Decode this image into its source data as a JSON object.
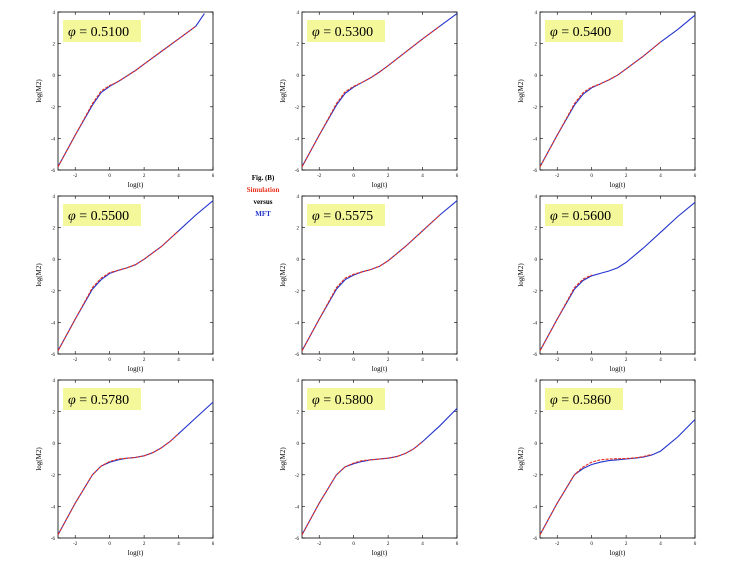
{
  "legend": {
    "figure_label": "Fig. (B)",
    "simulation_label": "Simulation",
    "versus_label": "versus",
    "mft_label": "MFT",
    "simulation_color": "#e8321e",
    "mft_color": "#2233cc",
    "label_background_color": "#f4f89a"
  },
  "chart_data": [
    {
      "type": "line",
      "phi_label": "= 0.5100",
      "xlabel": "log(t)",
      "ylabel": "log(M2)",
      "xlim": [
        -3,
        6
      ],
      "ylim": [
        -6,
        4
      ],
      "xticks": [
        "-2",
        "0",
        "2",
        "4",
        "6"
      ],
      "yticks": [
        "4",
        "2",
        "0",
        "-2",
        "-4",
        "-6"
      ],
      "series": [
        {
          "name": "Simulation",
          "x": [
            -3,
            -2,
            -1,
            -0.5,
            0,
            0.5,
            1,
            1.5,
            2,
            3,
            4,
            5
          ],
          "y": [
            -5.8,
            -3.8,
            -1.8,
            -1.0,
            -0.65,
            -0.4,
            -0.05,
            0.3,
            0.7,
            1.5,
            2.3,
            3.1
          ]
        },
        {
          "name": "MFT",
          "x": [
            -3,
            -2,
            -1,
            -0.5,
            0,
            0.5,
            1,
            1.5,
            2,
            3,
            4,
            5,
            5.5
          ],
          "y": [
            -5.8,
            -3.8,
            -1.9,
            -1.1,
            -0.7,
            -0.4,
            -0.05,
            0.3,
            0.7,
            1.5,
            2.3,
            3.1,
            3.9
          ]
        }
      ]
    },
    {
      "type": "line",
      "phi_label": "= 0.5300",
      "xlabel": "log(t)",
      "ylabel": "log(M2)",
      "xlim": [
        -3,
        6
      ],
      "ylim": [
        -6,
        4
      ],
      "xticks": [
        "-2",
        "0",
        "2",
        "4",
        "6"
      ],
      "yticks": [
        "4",
        "2",
        "0",
        "-2",
        "-4",
        "-6"
      ],
      "series": [
        {
          "name": "Simulation",
          "x": [
            -3,
            -2,
            -1,
            -0.5,
            0,
            0.5,
            1,
            1.5,
            2,
            3,
            4,
            5
          ],
          "y": [
            -5.8,
            -3.8,
            -1.8,
            -1.05,
            -0.7,
            -0.45,
            -0.15,
            0.2,
            0.6,
            1.45,
            2.3,
            3.1
          ]
        },
        {
          "name": "MFT",
          "x": [
            -3,
            -2,
            -1,
            -0.5,
            0,
            0.5,
            1,
            1.5,
            2,
            3,
            4,
            5,
            6
          ],
          "y": [
            -5.8,
            -3.8,
            -1.9,
            -1.15,
            -0.75,
            -0.45,
            -0.15,
            0.2,
            0.6,
            1.45,
            2.3,
            3.1,
            3.9
          ]
        }
      ]
    },
    {
      "type": "line",
      "phi_label": "= 0.5400",
      "xlabel": "log(t)",
      "ylabel": "log(M2)",
      "xlim": [
        -3,
        6
      ],
      "ylim": [
        -6,
        4
      ],
      "xticks": [
        "-2",
        "0",
        "2",
        "4",
        "6"
      ],
      "yticks": [
        "4",
        "2",
        "0",
        "-2",
        "-4",
        "-6"
      ],
      "series": [
        {
          "name": "Simulation",
          "x": [
            -3,
            -2,
            -1,
            -0.5,
            0,
            0.5,
            1,
            1.5,
            2,
            3,
            4
          ],
          "y": [
            -5.8,
            -3.8,
            -1.8,
            -1.1,
            -0.75,
            -0.55,
            -0.3,
            0.0,
            0.4,
            1.2,
            2.1
          ]
        },
        {
          "name": "MFT",
          "x": [
            -3,
            -2,
            -1,
            -0.5,
            0,
            0.5,
            1,
            1.5,
            2,
            3,
            4,
            5,
            6
          ],
          "y": [
            -5.8,
            -3.8,
            -1.9,
            -1.2,
            -0.8,
            -0.55,
            -0.3,
            0.0,
            0.4,
            1.2,
            2.1,
            2.9,
            3.8
          ]
        }
      ]
    },
    {
      "type": "line",
      "phi_label": "= 0.5500",
      "xlabel": "log(t)",
      "ylabel": "log(M2)",
      "xlim": [
        -3,
        6
      ],
      "ylim": [
        -6,
        4
      ],
      "xticks": [
        "-2",
        "0",
        "2",
        "4",
        "6"
      ],
      "yticks": [
        "4",
        "2",
        "0",
        "-2",
        "-4",
        "-6"
      ],
      "series": [
        {
          "name": "Simulation",
          "x": [
            -3,
            -2,
            -1,
            -0.5,
            0,
            0.5,
            1,
            1.5,
            2,
            3,
            4
          ],
          "y": [
            -5.8,
            -3.8,
            -1.8,
            -1.2,
            -0.85,
            -0.7,
            -0.55,
            -0.35,
            0.0,
            0.8,
            1.8
          ]
        },
        {
          "name": "MFT",
          "x": [
            -3,
            -2,
            -1,
            -0.5,
            0,
            0.5,
            1,
            1.5,
            2,
            3,
            4,
            5,
            6
          ],
          "y": [
            -5.8,
            -3.8,
            -1.9,
            -1.3,
            -0.9,
            -0.7,
            -0.55,
            -0.35,
            0.0,
            0.8,
            1.8,
            2.8,
            3.7
          ]
        }
      ]
    },
    {
      "type": "line",
      "phi_label": "= 0.5575",
      "xlabel": "log(t)",
      "ylabel": "log(M2)",
      "xlim": [
        -3,
        6
      ],
      "ylim": [
        -6,
        4
      ],
      "xticks": [
        "-2",
        "0",
        "2",
        "4",
        "6"
      ],
      "yticks": [
        "4",
        "2",
        "0",
        "-2",
        "-4",
        "-6"
      ],
      "series": [
        {
          "name": "Simulation",
          "x": [
            -3,
            -2,
            -1,
            -0.5,
            0,
            0.5,
            1,
            1.5,
            2,
            3,
            4,
            5
          ],
          "y": [
            -5.8,
            -3.8,
            -1.8,
            -1.2,
            -0.95,
            -0.8,
            -0.65,
            -0.45,
            -0.1,
            0.8,
            1.8,
            2.8
          ]
        },
        {
          "name": "MFT",
          "x": [
            -3,
            -2,
            -1,
            -0.5,
            0,
            0.5,
            1,
            1.5,
            2,
            3,
            4,
            5,
            6
          ],
          "y": [
            -5.8,
            -3.8,
            -1.9,
            -1.3,
            -1.0,
            -0.8,
            -0.65,
            -0.45,
            -0.1,
            0.8,
            1.8,
            2.8,
            3.7
          ]
        }
      ]
    },
    {
      "type": "line",
      "phi_label": "= 0.5600",
      "xlabel": "log(t)",
      "ylabel": "log(M2)",
      "xlim": [
        -3,
        6
      ],
      "ylim": [
        -6,
        4
      ],
      "xticks": [
        "-2",
        "0",
        "2",
        "4",
        "6"
      ],
      "yticks": [
        "4",
        "2",
        "0",
        "-2",
        "-4",
        "-6"
      ],
      "series": [
        {
          "name": "Simulation",
          "x": [
            -3,
            -2,
            -1,
            -0.5,
            0
          ],
          "y": [
            -5.8,
            -3.8,
            -1.8,
            -1.25,
            -1.0
          ]
        },
        {
          "name": "MFT",
          "x": [
            -3,
            -2,
            -1,
            -0.5,
            0,
            0.5,
            1,
            1.5,
            2,
            3,
            4,
            5,
            6
          ],
          "y": [
            -5.8,
            -3.8,
            -1.9,
            -1.35,
            -1.05,
            -0.9,
            -0.75,
            -0.55,
            -0.2,
            0.7,
            1.7,
            2.7,
            3.6
          ]
        }
      ]
    },
    {
      "type": "line",
      "phi_label": "= 0.5780",
      "xlabel": "log(t)",
      "ylabel": "log(M2)",
      "xlim": [
        -3,
        6
      ],
      "ylim": [
        -6,
        4
      ],
      "xticks": [
        "-2",
        "0",
        "2",
        "4",
        "6"
      ],
      "yticks": [
        "4",
        "2",
        "0",
        "-2",
        "-4",
        "-6"
      ],
      "series": [
        {
          "name": "Simulation",
          "x": [
            -3,
            -2,
            -1,
            -0.5,
            0,
            0.5,
            1,
            1.5,
            2,
            2.5,
            3,
            3.5,
            4
          ],
          "y": [
            -5.8,
            -3.8,
            -2.0,
            -1.45,
            -1.15,
            -1.0,
            -0.95,
            -0.9,
            -0.8,
            -0.6,
            -0.3,
            0.1,
            0.6
          ]
        },
        {
          "name": "MFT",
          "x": [
            -3,
            -2,
            -1,
            -0.5,
            0,
            0.5,
            1,
            1.5,
            2,
            2.5,
            3,
            3.5,
            4,
            5,
            6
          ],
          "y": [
            -5.8,
            -3.8,
            -2.0,
            -1.45,
            -1.2,
            -1.05,
            -0.95,
            -0.9,
            -0.8,
            -0.6,
            -0.3,
            0.1,
            0.6,
            1.6,
            2.6
          ]
        }
      ]
    },
    {
      "type": "line",
      "phi_label": "= 0.5800",
      "xlabel": "log(t)",
      "ylabel": "log(M2)",
      "xlim": [
        -3,
        6
      ],
      "ylim": [
        -6,
        4
      ],
      "xticks": [
        "-2",
        "0",
        "2",
        "4",
        "6"
      ],
      "yticks": [
        "4",
        "2",
        "0",
        "-2",
        "-4",
        "-6"
      ],
      "series": [
        {
          "name": "Simulation",
          "x": [
            -3,
            -2,
            -1,
            -0.5,
            0,
            0.5,
            1,
            1.5,
            2,
            2.5,
            3,
            3.5,
            4
          ],
          "y": [
            -5.8,
            -3.8,
            -2.0,
            -1.5,
            -1.25,
            -1.1,
            -1.05,
            -1.0,
            -0.95,
            -0.85,
            -0.65,
            -0.35,
            0.1
          ]
        },
        {
          "name": "MFT",
          "x": [
            -3,
            -2,
            -1,
            -0.5,
            0,
            0.5,
            1,
            1.5,
            2,
            2.5,
            3,
            3.5,
            4,
            5,
            6
          ],
          "y": [
            -5.8,
            -3.8,
            -2.0,
            -1.5,
            -1.3,
            -1.15,
            -1.05,
            -1.0,
            -0.95,
            -0.85,
            -0.65,
            -0.35,
            0.1,
            1.1,
            2.2
          ]
        }
      ]
    },
    {
      "type": "line",
      "phi_label": "= 0.5860",
      "xlabel": "log(t)",
      "ylabel": "log(M2)",
      "xlim": [
        -3,
        6
      ],
      "ylim": [
        -6,
        4
      ],
      "xticks": [
        "-2",
        "0",
        "2",
        "4",
        "6"
      ],
      "yticks": [
        "4",
        "2",
        "0",
        "-2",
        "-4",
        "-6"
      ],
      "series": [
        {
          "name": "Simulation",
          "x": [
            -3,
            -2,
            -1,
            -0.5,
            0,
            0.5,
            1,
            1.5,
            2,
            2.5,
            3,
            3.5
          ],
          "y": [
            -5.8,
            -3.8,
            -2.0,
            -1.5,
            -1.2,
            -1.05,
            -1.0,
            -0.98,
            -0.97,
            -0.93,
            -0.85,
            -0.7
          ]
        },
        {
          "name": "MFT",
          "x": [
            -3,
            -2,
            -1,
            -0.5,
            0,
            0.5,
            1,
            1.5,
            2,
            2.5,
            3,
            3.5,
            4,
            5,
            6
          ],
          "y": [
            -5.8,
            -3.8,
            -2.0,
            -1.6,
            -1.35,
            -1.2,
            -1.1,
            -1.05,
            -1.0,
            -0.95,
            -0.88,
            -0.75,
            -0.5,
            0.4,
            1.5
          ]
        }
      ]
    }
  ]
}
